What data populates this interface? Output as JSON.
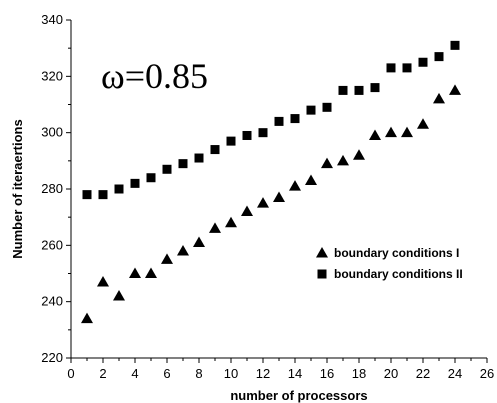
{
  "chart_data": {
    "type": "scatter",
    "title": "",
    "annotation": "ω=0.85",
    "xlabel": "number of processors",
    "ylabel": "Number of iteraertions",
    "xlim": [
      0,
      26
    ],
    "ylim": [
      220,
      340
    ],
    "xticks": [
      0,
      2,
      4,
      6,
      8,
      10,
      12,
      14,
      16,
      18,
      20,
      22,
      24,
      26
    ],
    "yticks": [
      220,
      240,
      260,
      280,
      300,
      320,
      340
    ],
    "grid": false,
    "legend_position": "right",
    "series": [
      {
        "name": "boundary conditions I",
        "marker": "triangle",
        "color": "#000000",
        "x": [
          1,
          2,
          3,
          4,
          5,
          6,
          7,
          8,
          9,
          10,
          11,
          12,
          13,
          14,
          15,
          16,
          17,
          18,
          19,
          20,
          21,
          22,
          23,
          24
        ],
        "y": [
          234,
          247,
          242,
          250,
          250,
          255,
          258,
          261,
          266,
          268,
          272,
          275,
          277,
          281,
          283,
          289,
          290,
          292,
          299,
          300,
          300,
          303,
          312,
          315
        ]
      },
      {
        "name": "boundary conditions II",
        "marker": "square",
        "color": "#000000",
        "x": [
          1,
          2,
          3,
          4,
          5,
          6,
          7,
          8,
          9,
          10,
          11,
          12,
          13,
          14,
          15,
          16,
          17,
          18,
          19,
          20,
          21,
          22,
          23,
          24
        ],
        "y": [
          278,
          278,
          280,
          282,
          284,
          287,
          289,
          291,
          294,
          297,
          299,
          300,
          304,
          305,
          308,
          309,
          315,
          315,
          316,
          323,
          323,
          325,
          327,
          331
        ]
      }
    ]
  }
}
